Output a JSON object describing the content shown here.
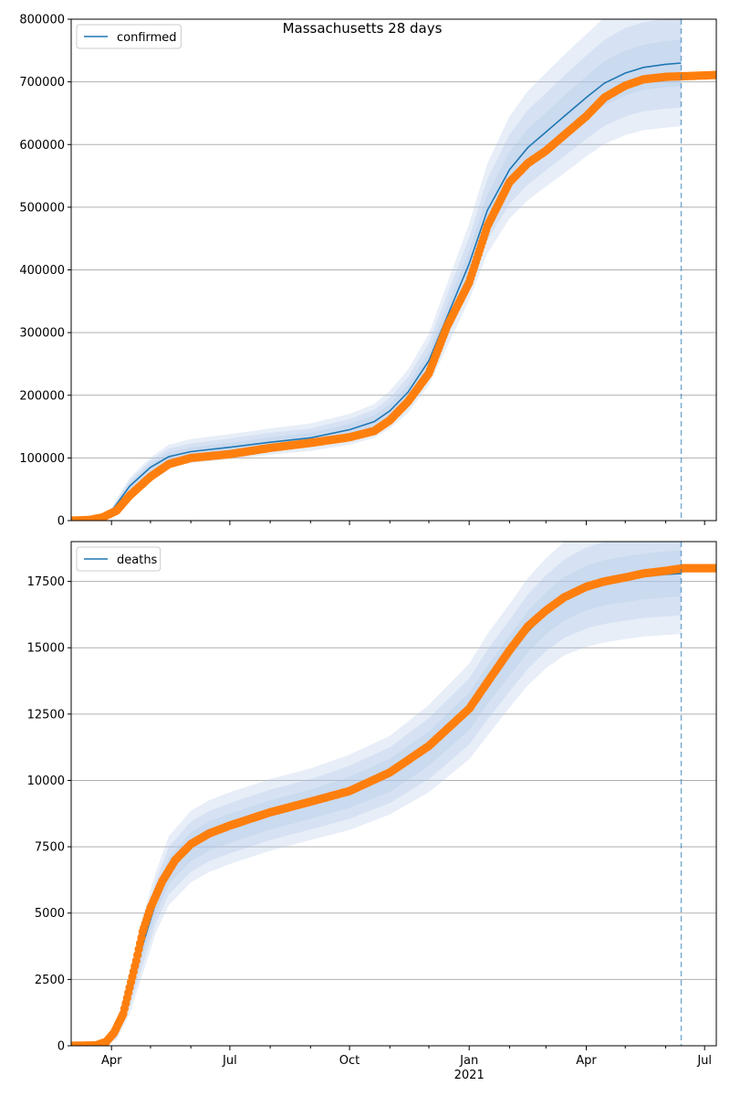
{
  "figure": {
    "title": "Massachusetts 28 days"
  },
  "colors": {
    "model_line": "#1f77b4",
    "band": "#aec7e8",
    "observed": "#ff7f0e",
    "grid": "#b0b0b0",
    "axis": "#000000",
    "forecast_marker": "#1f77b4"
  },
  "chart_data": [
    {
      "type": "line",
      "name": "confirmed-panel",
      "legend": [
        "confirmed"
      ],
      "legend_position": "top-left",
      "grid": "horizontal",
      "x_axis_type": "date",
      "x_range": [
        "2020-03-01",
        "2021-07-10"
      ],
      "ylim": [
        0,
        800000
      ],
      "y_ticks": [
        0,
        100000,
        200000,
        300000,
        400000,
        500000,
        600000,
        700000,
        800000
      ],
      "forecast_marker_date": "2021-06-13",
      "model": {
        "x": [
          "2020-03-01",
          "2020-03-20",
          "2020-04-01",
          "2020-04-15",
          "2020-05-01",
          "2020-05-15",
          "2020-06-01",
          "2020-07-01",
          "2020-08-01",
          "2020-09-01",
          "2020-10-01",
          "2020-10-20",
          "2020-11-01",
          "2020-11-15",
          "2020-12-01",
          "2020-12-15",
          "2021-01-01",
          "2021-01-15",
          "2021-02-01",
          "2021-02-15",
          "2021-03-01",
          "2021-03-15",
          "2021-04-01",
          "2021-04-15",
          "2021-05-01",
          "2021-05-15",
          "2021-06-01",
          "2021-06-13"
        ],
        "y": [
          0,
          3000,
          15000,
          55000,
          85000,
          102000,
          110000,
          117000,
          125000,
          132000,
          145000,
          158000,
          175000,
          205000,
          255000,
          325000,
          410000,
          495000,
          560000,
          595000,
          620000,
          645000,
          675000,
          698000,
          714000,
          723000,
          728000,
          730000
        ]
      },
      "bands": [
        {
          "level": "inner",
          "lower": [
            0,
            2500,
            13000,
            50000,
            79000,
            95000,
            103000,
            110000,
            117000,
            124000,
            136000,
            148000,
            164000,
            193000,
            241000,
            308000,
            389000,
            470000,
            532000,
            565000,
            589000,
            612000,
            641000,
            663000,
            678000,
            687000,
            691000,
            693000
          ],
          "upper": [
            0,
            3500,
            17000,
            60000,
            91000,
            109000,
            117000,
            124000,
            133000,
            140000,
            154000,
            168000,
            186000,
            217000,
            269000,
            342000,
            431000,
            520000,
            588000,
            625000,
            651000,
            678000,
            709000,
            733000,
            750000,
            759000,
            765000,
            767000
          ]
        },
        {
          "level": "middle",
          "lower": [
            0,
            2000,
            11000,
            46000,
            74000,
            89000,
            97000,
            104000,
            111000,
            117000,
            128000,
            140000,
            155000,
            182000,
            228000,
            292000,
            370000,
            447000,
            505000,
            536000,
            559000,
            581000,
            609000,
            630000,
            645000,
            653000,
            657000,
            659000
          ],
          "upper": [
            0,
            4000,
            19000,
            64000,
            96000,
            115000,
            123000,
            131000,
            140000,
            147000,
            162000,
            177000,
            196000,
            229000,
            284000,
            360000,
            452000,
            545000,
            616000,
            655000,
            682000,
            710000,
            742000,
            767000,
            786000,
            795000,
            801000,
            803000
          ]
        },
        {
          "level": "outer",
          "lower": [
            0,
            1500,
            9500,
            42000,
            69000,
            84000,
            92000,
            98000,
            105000,
            111000,
            121000,
            132000,
            147000,
            172000,
            216000,
            277000,
            352000,
            426000,
            482000,
            511000,
            533000,
            554000,
            581000,
            601000,
            615000,
            623000,
            627000,
            629000
          ],
          "upper": [
            0,
            4500,
            21000,
            68000,
            101000,
            121000,
            130000,
            138000,
            147000,
            155000,
            170000,
            186000,
            207000,
            241000,
            298000,
            378000,
            474000,
            570000,
            645000,
            685000,
            714000,
            743000,
            776000,
            803000,
            823000,
            833000,
            840000,
            842000
          ]
        }
      ],
      "observed": {
        "x": [
          "2020-03-01",
          "2020-03-15",
          "2020-03-25",
          "2020-04-05",
          "2020-04-15",
          "2020-05-01",
          "2020-05-15",
          "2020-06-01",
          "2020-07-01",
          "2020-08-01",
          "2020-09-01",
          "2020-10-01",
          "2020-10-20",
          "2020-11-01",
          "2020-11-15",
          "2020-12-01",
          "2020-12-15",
          "2021-01-01",
          "2021-01-15",
          "2021-02-01",
          "2021-02-15",
          "2021-03-01",
          "2021-03-15",
          "2021-04-01",
          "2021-04-15",
          "2021-05-01",
          "2021-05-15",
          "2021-06-01",
          "2021-06-15",
          "2021-07-10"
        ],
        "y": [
          0,
          1000,
          5000,
          16000,
          40000,
          70000,
          90000,
          100000,
          106000,
          116000,
          124000,
          133000,
          143000,
          160000,
          190000,
          235000,
          310000,
          380000,
          470000,
          540000,
          570000,
          590000,
          615000,
          645000,
          675000,
          694000,
          704000,
          708000,
          709000,
          711000
        ]
      }
    },
    {
      "type": "line",
      "name": "deaths-panel",
      "legend": [
        "deaths"
      ],
      "legend_position": "top-left",
      "grid": "horizontal",
      "x_axis_type": "date",
      "x_range": [
        "2020-03-01",
        "2021-07-10"
      ],
      "ylim": [
        0,
        19000
      ],
      "y_ticks": [
        0,
        2500,
        5000,
        7500,
        10000,
        12500,
        15000,
        17500
      ],
      "x_ticks": [
        {
          "date": "2020-04-01",
          "label": "Apr",
          "sublabel": ""
        },
        {
          "date": "2020-07-01",
          "label": "Jul",
          "sublabel": ""
        },
        {
          "date": "2020-10-01",
          "label": "Oct",
          "sublabel": ""
        },
        {
          "date": "2021-01-01",
          "label": "Jan",
          "sublabel": "2021"
        },
        {
          "date": "2021-04-01",
          "label": "Apr",
          "sublabel": ""
        },
        {
          "date": "2021-07-01",
          "label": "Jul",
          "sublabel": ""
        }
      ],
      "minor_tick_dates": [
        "2020-05-01",
        "2020-06-01",
        "2020-08-01",
        "2020-09-01",
        "2020-11-01",
        "2020-12-01",
        "2021-02-01",
        "2021-03-01",
        "2021-05-01",
        "2021-06-01"
      ],
      "forecast_marker_date": "2021-06-13",
      "model": {
        "x": [
          "2020-03-01",
          "2020-03-25",
          "2020-04-05",
          "2020-04-15",
          "2020-04-25",
          "2020-05-05",
          "2020-05-15",
          "2020-06-01",
          "2020-06-15",
          "2020-07-01",
          "2020-08-01",
          "2020-09-01",
          "2020-10-01",
          "2020-11-01",
          "2020-12-01",
          "2021-01-01",
          "2021-01-15",
          "2021-02-01",
          "2021-02-15",
          "2021-03-01",
          "2021-03-15",
          "2021-04-01",
          "2021-04-15",
          "2021-05-01",
          "2021-05-15",
          "2021-06-01",
          "2021-06-13"
        ],
        "y": [
          0,
          30,
          500,
          2000,
          3800,
          5400,
          6600,
          7500,
          7900,
          8200,
          8700,
          9100,
          9550,
          10200,
          11200,
          12600,
          13600,
          14700,
          15600,
          16300,
          16850,
          17250,
          17450,
          17580,
          17680,
          17760,
          17800
        ]
      },
      "bands": [
        {
          "level": "inner",
          "lower": [
            0,
            20,
            380,
            1700,
            3400,
            4950,
            6100,
            6950,
            7350,
            7650,
            8150,
            8550,
            8970,
            9580,
            10550,
            11900,
            12880,
            13950,
            14820,
            15510,
            16030,
            16410,
            16600,
            16720,
            16820,
            16890,
            16930
          ],
          "upper": [
            0,
            40,
            620,
            2300,
            4200,
            5850,
            7100,
            8050,
            8450,
            8750,
            9250,
            9650,
            10130,
            10820,
            11850,
            13300,
            14320,
            15450,
            16380,
            17090,
            17670,
            18090,
            18300,
            18440,
            18540,
            18630,
            18670
          ]
        },
        {
          "level": "middle",
          "lower": [
            0,
            15,
            300,
            1450,
            3050,
            4600,
            5700,
            6550,
            6950,
            7250,
            7750,
            8150,
            8550,
            9150,
            10050,
            11350,
            12280,
            13350,
            14200,
            14870,
            15370,
            15720,
            15900,
            16020,
            16120,
            16180,
            16220
          ],
          "upper": [
            0,
            45,
            700,
            2550,
            4550,
            6200,
            7500,
            8450,
            8850,
            9150,
            9650,
            10050,
            10550,
            11250,
            12350,
            13850,
            14920,
            16050,
            17000,
            17730,
            18330,
            18780,
            19000,
            19150,
            19250,
            19340,
            19380
          ]
        },
        {
          "level": "outer",
          "lower": [
            0,
            10,
            220,
            1200,
            2700,
            4250,
            5300,
            6150,
            6550,
            6850,
            7350,
            7750,
            8130,
            8720,
            9550,
            10800,
            11680,
            12750,
            13580,
            14230,
            14710,
            15030,
            15200,
            15320,
            15420,
            15480,
            15520
          ],
          "upper": [
            0,
            50,
            780,
            2800,
            4900,
            6550,
            7900,
            8850,
            9250,
            9550,
            10050,
            10450,
            10970,
            11680,
            12850,
            14400,
            15520,
            16650,
            17620,
            18370,
            18990,
            19470,
            19700,
            19860,
            19960,
            20050,
            20090
          ]
        }
      ],
      "observed": {
        "x": [
          "2020-03-01",
          "2020-03-20",
          "2020-03-28",
          "2020-04-03",
          "2020-04-10",
          "2020-04-15",
          "2020-04-20",
          "2020-04-25",
          "2020-05-01",
          "2020-05-10",
          "2020-05-20",
          "2020-06-01",
          "2020-06-15",
          "2020-07-01",
          "2020-08-01",
          "2020-09-01",
          "2020-10-01",
          "2020-11-01",
          "2020-12-01",
          "2021-01-01",
          "2021-01-15",
          "2021-02-01",
          "2021-02-15",
          "2021-03-01",
          "2021-03-15",
          "2021-04-01",
          "2021-04-15",
          "2021-05-01",
          "2021-05-15",
          "2021-06-01",
          "2021-06-15",
          "2021-07-10"
        ],
        "y": [
          0,
          15,
          150,
          500,
          1200,
          2200,
          3200,
          4300,
          5200,
          6200,
          7000,
          7600,
          8000,
          8300,
          8800,
          9200,
          9600,
          10300,
          11300,
          12700,
          13700,
          14900,
          15800,
          16400,
          16900,
          17300,
          17500,
          17650,
          17800,
          17900,
          18000,
          18000
        ]
      }
    }
  ]
}
